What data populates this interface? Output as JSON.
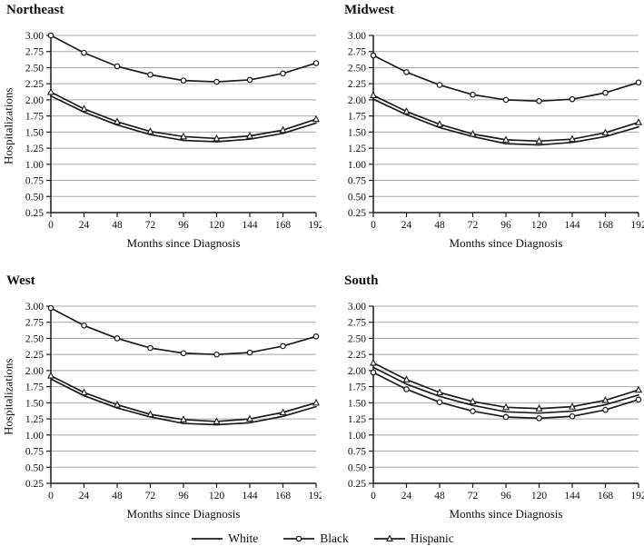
{
  "style": {
    "background": "#ffffff",
    "line": "#1c1c1c",
    "grid": "#a8a8a8",
    "text": "#111111",
    "marker_fill": "#ffffff"
  },
  "legend": {
    "position": "bottom-center",
    "items": [
      {
        "label": "White",
        "marker": "none"
      },
      {
        "label": "Black",
        "marker": "circle"
      },
      {
        "label": "Hispanic",
        "marker": "triangle"
      }
    ]
  },
  "chart_data": [
    {
      "type": "line",
      "title": "Northeast",
      "ylabel": "Hospitalizations",
      "xlabel": "Months since Diagnosis",
      "ylim": [
        0.25,
        3.0
      ],
      "yticks": [
        "0.25",
        "0.50",
        "0.75",
        "1.00",
        "1.25",
        "1.50",
        "1.75",
        "2.00",
        "2.25",
        "2.50",
        "2.75",
        "3.00"
      ],
      "x": [
        0,
        24,
        48,
        72,
        96,
        120,
        144,
        168,
        192
      ],
      "grid": true,
      "series": [
        {
          "name": "White",
          "marker": "none",
          "values": [
            2.06,
            1.81,
            1.61,
            1.46,
            1.37,
            1.35,
            1.39,
            1.48,
            1.64
          ]
        },
        {
          "name": "Black",
          "marker": "circle",
          "values": [
            3.0,
            2.73,
            2.52,
            2.39,
            2.3,
            2.28,
            2.31,
            2.41,
            2.57
          ]
        },
        {
          "name": "Hispanic",
          "marker": "triangle",
          "values": [
            2.12,
            1.86,
            1.66,
            1.51,
            1.43,
            1.4,
            1.44,
            1.53,
            1.7
          ]
        }
      ]
    },
    {
      "type": "line",
      "title": "Midwest",
      "xlabel": "Months since Diagnosis",
      "ylim": [
        0.25,
        3.0
      ],
      "yticks": [
        "0.25",
        "0.50",
        "0.75",
        "1.00",
        "1.25",
        "1.50",
        "1.75",
        "2.00",
        "2.25",
        "2.50",
        "2.75",
        "3.00"
      ],
      "x": [
        0,
        24,
        48,
        72,
        96,
        120,
        144,
        168,
        192
      ],
      "grid": true,
      "series": [
        {
          "name": "White",
          "marker": "none",
          "values": [
            2.01,
            1.77,
            1.57,
            1.43,
            1.32,
            1.3,
            1.34,
            1.43,
            1.58
          ]
        },
        {
          "name": "Black",
          "marker": "circle",
          "values": [
            2.69,
            2.43,
            2.23,
            2.08,
            2.0,
            1.98,
            2.01,
            2.11,
            2.27
          ]
        },
        {
          "name": "Hispanic",
          "marker": "triangle",
          "values": [
            2.07,
            1.82,
            1.62,
            1.47,
            1.38,
            1.36,
            1.39,
            1.49,
            1.65
          ]
        }
      ]
    },
    {
      "type": "line",
      "title": "West",
      "ylabel": "Hospitalizations",
      "xlabel": "Months since Diagnosis",
      "ylim": [
        0.25,
        3.0
      ],
      "yticks": [
        "0.25",
        "0.50",
        "0.75",
        "1.00",
        "1.25",
        "1.50",
        "1.75",
        "2.00",
        "2.25",
        "2.50",
        "2.75",
        "3.00"
      ],
      "x": [
        0,
        24,
        48,
        72,
        96,
        120,
        144,
        168,
        192
      ],
      "grid": true,
      "series": [
        {
          "name": "White",
          "marker": "none",
          "values": [
            1.87,
            1.61,
            1.42,
            1.28,
            1.18,
            1.16,
            1.19,
            1.29,
            1.44
          ]
        },
        {
          "name": "Black",
          "marker": "circle",
          "values": [
            2.97,
            2.7,
            2.5,
            2.35,
            2.27,
            2.25,
            2.28,
            2.38,
            2.53
          ]
        },
        {
          "name": "Hispanic",
          "marker": "triangle",
          "values": [
            1.92,
            1.66,
            1.47,
            1.32,
            1.24,
            1.21,
            1.25,
            1.35,
            1.5
          ]
        }
      ]
    },
    {
      "type": "line",
      "title": "South",
      "xlabel": "Months since Diagnosis",
      "ylim": [
        0.25,
        3.0
      ],
      "yticks": [
        "0.25",
        "0.50",
        "0.75",
        "1.00",
        "1.25",
        "1.50",
        "1.75",
        "2.00",
        "2.25",
        "2.50",
        "2.75",
        "3.00"
      ],
      "x": [
        0,
        24,
        48,
        72,
        96,
        120,
        144,
        168,
        192
      ],
      "grid": true,
      "series": [
        {
          "name": "White",
          "marker": "none",
          "values": [
            2.05,
            1.79,
            1.6,
            1.46,
            1.36,
            1.34,
            1.37,
            1.47,
            1.62
          ]
        },
        {
          "name": "Black",
          "marker": "circle",
          "values": [
            1.97,
            1.71,
            1.51,
            1.37,
            1.28,
            1.26,
            1.29,
            1.39,
            1.55
          ]
        },
        {
          "name": "Hispanic",
          "marker": "triangle",
          "values": [
            2.12,
            1.86,
            1.66,
            1.52,
            1.43,
            1.41,
            1.44,
            1.54,
            1.7
          ]
        }
      ]
    }
  ]
}
